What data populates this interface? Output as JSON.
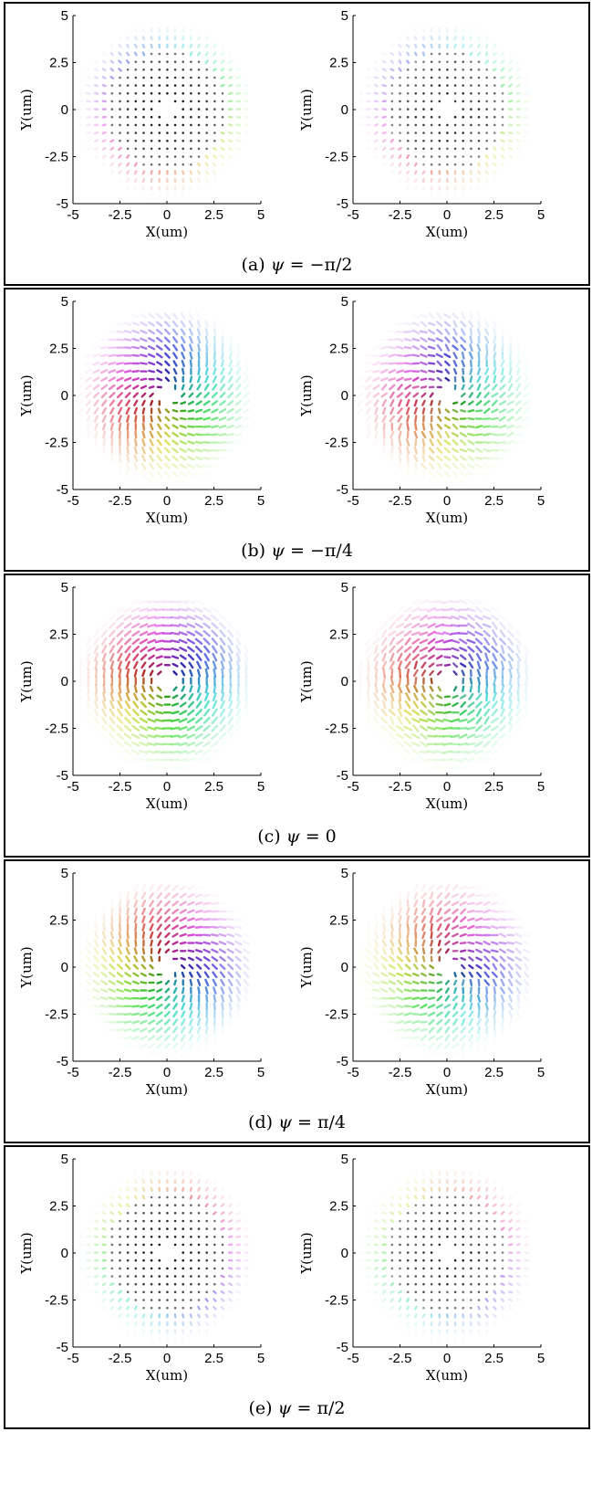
{
  "chart_data": [
    {
      "type": "vector-field",
      "caption": "(a) ψ = −π/2",
      "caption_prefix": "(a) ",
      "caption_symbol": "ψ",
      "caption_value": " = −π/2",
      "xlabel": "X(um)",
      "ylabel": "Y(um)",
      "xlim": [
        -5,
        5
      ],
      "ylim": [
        -5,
        5
      ],
      "ticks": [
        -5,
        -2.5,
        0,
        2.5,
        5
      ],
      "tick_labels": [
        "-5",
        "-2.5",
        "0",
        "2.5",
        "5"
      ],
      "psi": -1.5708,
      "subplots": [
        "left",
        "right"
      ]
    },
    {
      "type": "vector-field",
      "caption": "(b) ψ = −π/4",
      "caption_prefix": "(b) ",
      "caption_symbol": "ψ",
      "caption_value": " = −π/4",
      "xlabel": "X(um)",
      "ylabel": "Y(um)",
      "xlim": [
        -5,
        5
      ],
      "ylim": [
        -5,
        5
      ],
      "ticks": [
        -5,
        -2.5,
        0,
        2.5,
        5
      ],
      "tick_labels": [
        "-5",
        "-2.5",
        "0",
        "2.5",
        "5"
      ],
      "psi": -0.7854,
      "subplots": [
        "left",
        "right"
      ]
    },
    {
      "type": "vector-field",
      "caption": "(c) ψ = 0",
      "caption_prefix": "(c) ",
      "caption_symbol": "ψ",
      "caption_value": " = 0",
      "xlabel": "X(um)",
      "ylabel": "Y(um)",
      "xlim": [
        -5,
        5
      ],
      "ylim": [
        -5,
        5
      ],
      "ticks": [
        -5,
        -2.5,
        0,
        2.5,
        5
      ],
      "tick_labels": [
        "-5",
        "-2.5",
        "0",
        "2.5",
        "5"
      ],
      "psi": 0,
      "subplots": [
        "left",
        "right"
      ]
    },
    {
      "type": "vector-field",
      "caption": "(d) ψ = π/4",
      "caption_prefix": "(d) ",
      "caption_symbol": "ψ",
      "caption_value": " = π/4",
      "xlabel": "X(um)",
      "ylabel": "Y(um)",
      "xlim": [
        -5,
        5
      ],
      "ylim": [
        -5,
        5
      ],
      "ticks": [
        -5,
        -2.5,
        0,
        2.5,
        5
      ],
      "tick_labels": [
        "-5",
        "-2.5",
        "0",
        "2.5",
        "5"
      ],
      "psi": 0.7854,
      "subplots": [
        "left",
        "right"
      ]
    },
    {
      "type": "vector-field",
      "caption": "(e) ψ = π/2",
      "caption_prefix": "(e) ",
      "caption_symbol": "ψ",
      "caption_value": " = π/2",
      "xlabel": "X(um)",
      "ylabel": "Y(um)",
      "xlim": [
        -5,
        5
      ],
      "ylim": [
        -5,
        5
      ],
      "ticks": [
        -5,
        -2.5,
        0,
        2.5,
        5
      ],
      "tick_labels": [
        "-5",
        "-2.5",
        "0",
        "2.5",
        "5"
      ],
      "psi": 1.5708,
      "subplots": [
        "left",
        "right"
      ]
    }
  ]
}
